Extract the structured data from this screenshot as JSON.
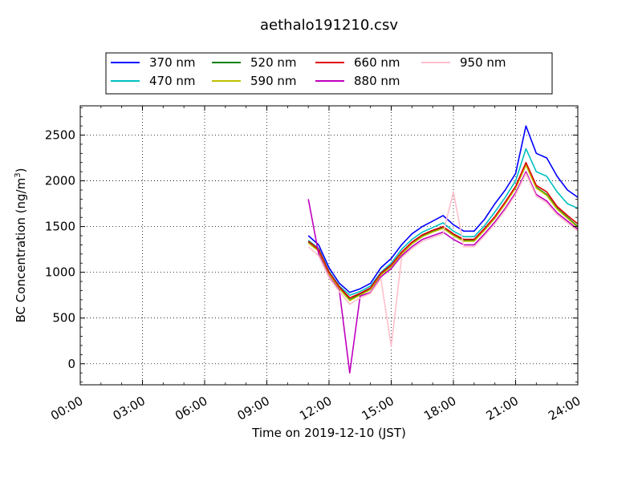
{
  "chart_data": {
    "type": "line",
    "title": "aethalo191210.csv",
    "xlabel": "Time on 2019-12-10 (JST)",
    "ylabel_main": "BC Concentration (ng/m",
    "ylabel_sup": "3",
    "ylabel_end": ")",
    "xlim_hours": [
      0,
      24
    ],
    "ylim": [
      -230,
      2820
    ],
    "x_ticks": [
      {
        "hour": 0,
        "label": "00:00"
      },
      {
        "hour": 3,
        "label": "03:00"
      },
      {
        "hour": 6,
        "label": "06:00"
      },
      {
        "hour": 9,
        "label": "09:00"
      },
      {
        "hour": 12,
        "label": "12:00"
      },
      {
        "hour": 15,
        "label": "15:00"
      },
      {
        "hour": 18,
        "label": "18:00"
      },
      {
        "hour": 21,
        "label": "21:00"
      },
      {
        "hour": 24,
        "label": "24:00"
      }
    ],
    "y_ticks": [
      {
        "value": 0,
        "label": "0"
      },
      {
        "value": 500,
        "label": "500"
      },
      {
        "value": 1000,
        "label": "1000"
      },
      {
        "value": 1500,
        "label": "1500"
      },
      {
        "value": 2000,
        "label": "2000"
      },
      {
        "value": 2500,
        "label": "2500"
      }
    ],
    "grid": true,
    "legend_position": "top",
    "series": [
      {
        "name": "370 nm",
        "color": "#0000ff",
        "x": [
          "11:00",
          "11:30",
          "12:00",
          "12:30",
          "13:00",
          "13:30",
          "14:00",
          "14:30",
          "15:00",
          "15:30",
          "16:00",
          "16:30",
          "17:00",
          "17:30",
          "18:00",
          "18:30",
          "19:00",
          "19:30",
          "20:00",
          "20:30",
          "21:00",
          "21:30",
          "22:00",
          "22:30",
          "23:00",
          "23:30",
          "24:00"
        ],
        "values": [
          1400,
          1300,
          1050,
          880,
          780,
          820,
          880,
          1050,
          1150,
          1300,
          1420,
          1500,
          1560,
          1620,
          1520,
          1450,
          1450,
          1580,
          1750,
          1900,
          2080,
          2600,
          2300,
          2250,
          2050,
          1900,
          1820
        ]
      },
      {
        "name": "470 nm",
        "color": "#00bfbf",
        "x": [
          "11:00",
          "11:30",
          "12:00",
          "12:30",
          "13:00",
          "13:30",
          "14:00",
          "14:30",
          "15:00",
          "15:30",
          "16:00",
          "16:30",
          "17:00",
          "17:30",
          "18:00",
          "18:30",
          "19:00",
          "19:30",
          "20:00",
          "20:30",
          "21:00",
          "21:30",
          "22:00",
          "22:30",
          "23:00",
          "23:30",
          "24:00"
        ],
        "values": [
          1350,
          1260,
          1010,
          850,
          750,
          790,
          850,
          1000,
          1100,
          1250,
          1360,
          1440,
          1490,
          1540,
          1450,
          1390,
          1390,
          1510,
          1660,
          1820,
          2000,
          2350,
          2100,
          2050,
          1880,
          1750,
          1700
        ]
      },
      {
        "name": "520 nm",
        "color": "#008000",
        "x": [
          "11:00",
          "11:30",
          "12:00",
          "12:30",
          "13:00",
          "13:30",
          "14:00",
          "14:30",
          "15:00",
          "15:30",
          "16:00",
          "16:30",
          "17:00",
          "17:30",
          "18:00",
          "18:30",
          "19:00",
          "19:30",
          "20:00",
          "20:30",
          "21:00",
          "21:30",
          "22:00",
          "22:30",
          "23:00",
          "23:30",
          "24:00"
        ],
        "values": [
          1330,
          1240,
          990,
          830,
          700,
          760,
          820,
          980,
          1070,
          1210,
          1320,
          1400,
          1450,
          1490,
          1410,
          1350,
          1350,
          1470,
          1600,
          1760,
          1930,
          2180,
          1930,
          1850,
          1700,
          1600,
          1500
        ]
      },
      {
        "name": "590 nm",
        "color": "#bfbf00",
        "x": [
          "11:00",
          "11:30",
          "12:00",
          "12:30",
          "13:00",
          "13:30",
          "14:00",
          "14:30",
          "15:00",
          "15:30",
          "16:00",
          "16:30",
          "17:00",
          "17:30",
          "18:00",
          "18:30",
          "19:00",
          "19:30",
          "20:00",
          "20:30",
          "21:00",
          "21:30",
          "22:00",
          "22:30",
          "23:00",
          "23:30",
          "24:00"
        ],
        "values": [
          1320,
          1230,
          980,
          820,
          690,
          750,
          810,
          970,
          1060,
          1200,
          1310,
          1390,
          1440,
          1480,
          1400,
          1340,
          1340,
          1460,
          1590,
          1750,
          1920,
          2170,
          1920,
          1840,
          1690,
          1590,
          1490
        ]
      },
      {
        "name": "660 nm",
        "color": "#e00000",
        "x": [
          "11:00",
          "11:30",
          "12:00",
          "12:30",
          "13:00",
          "13:30",
          "14:00",
          "14:30",
          "15:00",
          "15:30",
          "16:00",
          "16:30",
          "17:00",
          "17:30",
          "18:00",
          "18:30",
          "19:00",
          "19:30",
          "20:00",
          "20:30",
          "21:00",
          "21:30",
          "22:00",
          "22:30",
          "23:00",
          "23:30",
          "24:00"
        ],
        "values": [
          1340,
          1250,
          1000,
          840,
          720,
          770,
          830,
          990,
          1080,
          1220,
          1330,
          1410,
          1460,
          1500,
          1420,
          1360,
          1360,
          1480,
          1610,
          1770,
          1940,
          2200,
          1950,
          1880,
          1720,
          1620,
          1530
        ]
      },
      {
        "name": "880 nm",
        "color": "#bf00bf",
        "x": [
          "11:00",
          "11:30",
          "12:00",
          "12:30",
          "13:00",
          "13:30",
          "14:00",
          "14:30",
          "15:00",
          "15:30",
          "16:00",
          "16:30",
          "17:00",
          "17:30",
          "18:00",
          "18:30",
          "19:00",
          "19:30",
          "20:00",
          "20:30",
          "21:00",
          "21:30",
          "22:00",
          "22:30",
          "23:00",
          "23:30",
          "24:00"
        ],
        "values": [
          1800,
          1200,
          950,
          800,
          -100,
          740,
          780,
          950,
          1040,
          1180,
          1280,
          1360,
          1400,
          1440,
          1360,
          1300,
          1300,
          1420,
          1550,
          1700,
          1870,
          2100,
          1850,
          1780,
          1650,
          1560,
          1470
        ]
      },
      {
        "name": "950 nm",
        "color": "#ffc0cb",
        "x": [
          "11:00",
          "11:30",
          "12:00",
          "12:30",
          "13:00",
          "13:30",
          "14:00",
          "14:30",
          "15:00",
          "15:30",
          "16:00",
          "16:30",
          "17:00",
          "17:30",
          "18:00",
          "18:30",
          "19:00",
          "19:30",
          "20:00",
          "20:30",
          "21:00",
          "21:30",
          "22:00",
          "22:30",
          "23:00",
          "23:30",
          "24:00"
        ],
        "values": [
          1280,
          1180,
          940,
          790,
          650,
          720,
          770,
          930,
          190,
          1160,
          1260,
          1340,
          1380,
          1420,
          1880,
          1280,
          1280,
          1400,
          1530,
          1680,
          1850,
          2080,
          1830,
          1760,
          1630,
          1540,
          1450
        ]
      }
    ]
  }
}
